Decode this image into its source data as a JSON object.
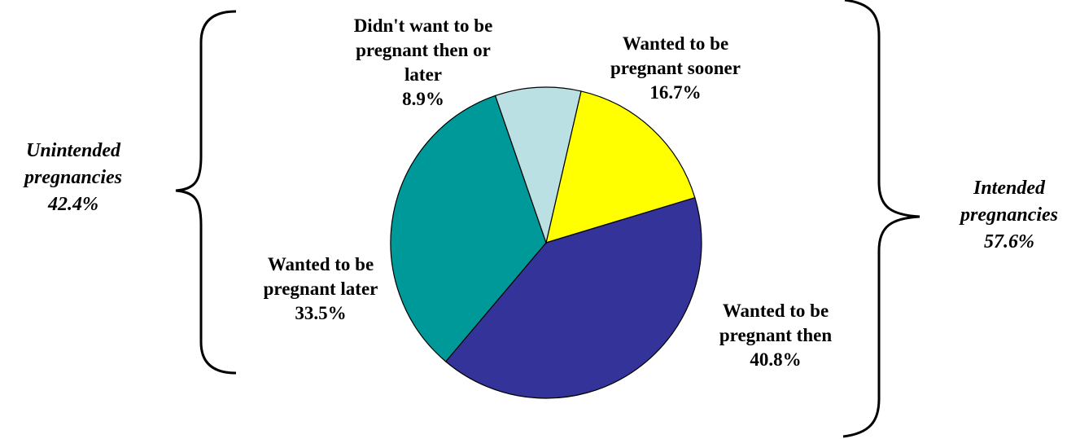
{
  "chart_data": {
    "type": "pie",
    "title": "",
    "slices": [
      {
        "label_lines": [
          "Wanted to be",
          "pregnant sooner"
        ],
        "value": 16.7,
        "value_label": "16.7%",
        "color": "#FFFF00"
      },
      {
        "label_lines": [
          "Wanted to be",
          "pregnant then"
        ],
        "value": 40.8,
        "value_label": "40.8%",
        "color": "#333399"
      },
      {
        "label_lines": [
          "Wanted to be",
          "pregnant later"
        ],
        "value": 33.5,
        "value_label": "33.5%",
        "color": "#009999"
      },
      {
        "label_lines": [
          "Didn't want to be",
          "pregnant then or",
          "later"
        ],
        "value": 8.9,
        "value_label": "8.9%",
        "color": "#BBE0E3"
      }
    ],
    "groups": [
      {
        "label_lines": [
          "Unintended",
          "pregnancies"
        ],
        "value_label": "42.4%"
      },
      {
        "label_lines": [
          "Intended",
          "pregnancies"
        ],
        "value_label": "57.6%"
      }
    ]
  }
}
